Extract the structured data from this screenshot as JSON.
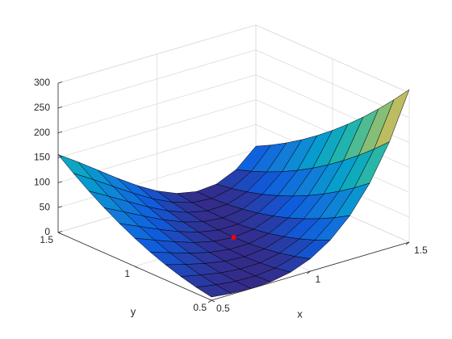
{
  "chart_data": {
    "type": "surface",
    "x": [
      0.5,
      0.6,
      0.7,
      0.8,
      0.9,
      1,
      1.1,
      1.2,
      1.3,
      1.4,
      1.5
    ],
    "y": [
      0.5,
      0.6,
      0.7,
      0.8,
      0.9,
      1,
      1.1,
      1.2,
      1.3,
      1.4,
      1.5
    ],
    "z": [
      [
        6.5,
        2.1,
        0.1,
        2.0,
        9.6,
        25,
        50.4,
        88.4,
        141.7,
        213.3,
        306.5
      ],
      [
        12.5,
        5.9,
        1.3,
        0.2,
        4.4,
        16,
        37.2,
        70.6,
        118.9,
        185.1,
        272.5
      ],
      [
        20.5,
        11.7,
        4.5,
        0.4,
        1.2,
        9,
        26.0,
        54.8,
        98.1,
        158.9,
        240.5
      ],
      [
        30.5,
        19.5,
        9.7,
        2.6,
        0.0,
        4,
        16.8,
        41.0,
        79.3,
        134.7,
        210.5
      ],
      [
        42.5,
        29.3,
        16.9,
        6.8,
        0.8,
        1,
        9.6,
        29.2,
        62.5,
        112.5,
        182.5
      ],
      [
        56.5,
        41.1,
        26.1,
        13.0,
        3.6,
        0,
        4.4,
        19.4,
        47.7,
        92.3,
        156.5
      ],
      [
        72.5,
        54.9,
        37.3,
        21.2,
        8.4,
        1,
        1.2,
        11.6,
        34.9,
        74.1,
        132.5
      ],
      [
        90.5,
        70.7,
        50.5,
        31.4,
        15.2,
        4,
        0.0,
        5.8,
        24.1,
        57.9,
        110.5
      ],
      [
        110.5,
        88.5,
        65.7,
        43.6,
        24.0,
        9,
        0.8,
        2.0,
        15.3,
        43.7,
        90.5
      ],
      [
        132.5,
        108.3,
        82.9,
        57.8,
        34.8,
        16,
        3.6,
        0.2,
        8.5,
        31.5,
        72.5
      ],
      [
        156.5,
        130.1,
        102.1,
        74.0,
        47.6,
        25,
        8.4,
        0.4,
        3.7,
        21.3,
        56.5
      ]
    ],
    "xlim": [
      0.5,
      1.5
    ],
    "ylim": [
      0.5,
      1.5
    ],
    "zlim": [
      0,
      300
    ],
    "xticks": [
      0.5,
      1,
      1.5
    ],
    "yticks": [
      0.5,
      1,
      1.5
    ],
    "zticks": [
      0,
      50,
      100,
      150,
      200,
      250,
      300
    ],
    "xlabel": "x",
    "ylabel": "y",
    "colormap": "parula",
    "edge_color": "#000000",
    "grid": true,
    "marker": {
      "x": 1,
      "y": 1,
      "z": 0,
      "color": "#ff0000"
    }
  }
}
